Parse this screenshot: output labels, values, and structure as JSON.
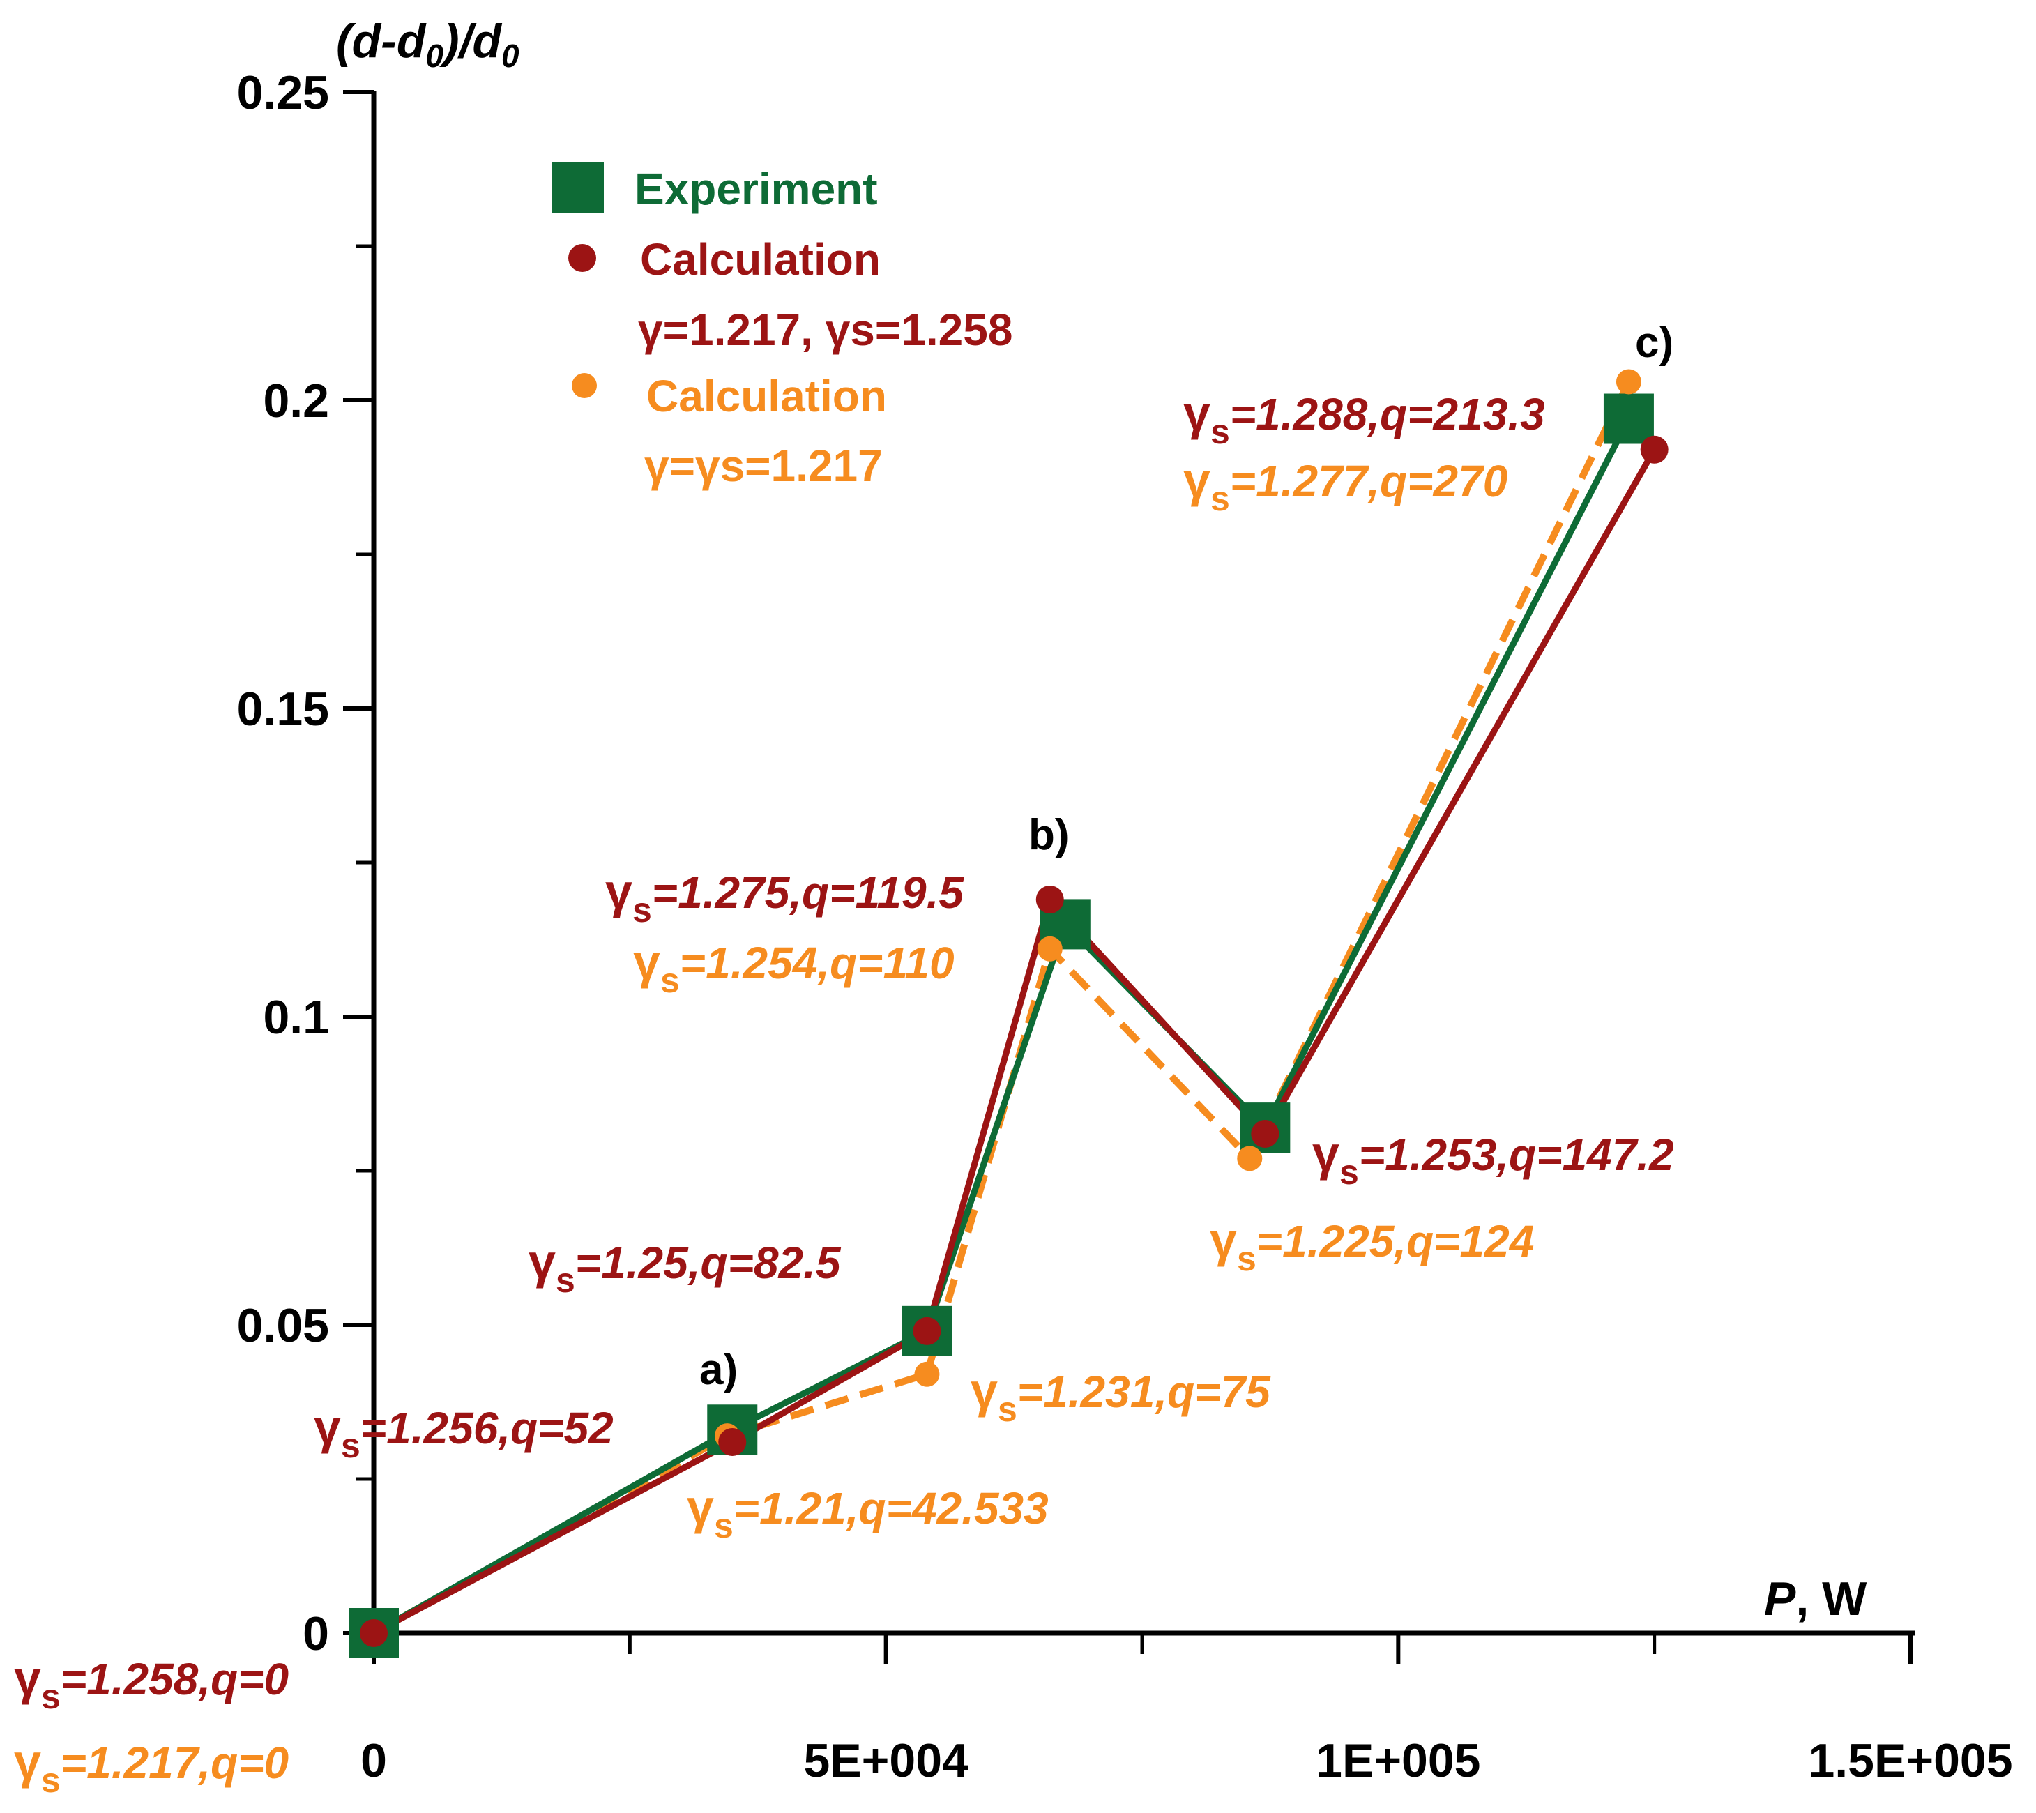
{
  "chart_data": {
    "type": "line",
    "title": "",
    "ylabel_parts": [
      "(d-d",
      "0",
      ")/d",
      "0"
    ],
    "xlabel_parts": [
      "P",
      ", W"
    ],
    "xlim": [
      0,
      150000
    ],
    "ylim": [
      0,
      0.25
    ],
    "x_ticks": [
      {
        "value": 0,
        "label": "0"
      },
      {
        "value": 50000,
        "label": "5E+004"
      },
      {
        "value": 100000,
        "label": "1E+005"
      },
      {
        "value": 150000,
        "label": "1.5E+005"
      }
    ],
    "x_minor_ticks": [
      25000,
      75000,
      125000
    ],
    "y_ticks": [
      {
        "value": 0,
        "label": "0"
      },
      {
        "value": 0.05,
        "label": "0.05"
      },
      {
        "value": 0.1,
        "label": "0.1"
      },
      {
        "value": 0.15,
        "label": "0.15"
      },
      {
        "value": 0.2,
        "label": "0.2"
      },
      {
        "value": 0.25,
        "label": "0.25"
      }
    ],
    "y_minor_ticks": [
      0.025,
      0.075,
      0.125,
      0.175,
      0.225
    ],
    "series": [
      {
        "name": "Experiment",
        "color": "#0e6b36",
        "marker": "square",
        "line": "solid",
        "x": [
          0,
          35000,
          54000,
          67500,
          87000,
          122500
        ],
        "y": [
          0,
          0.033,
          0.049,
          0.115,
          0.082,
          0.197
        ]
      },
      {
        "name": "Calculation γ=1.217, γs=1.258",
        "color": "#9c1414",
        "marker": "circle",
        "line": "solid",
        "x": [
          0,
          35000,
          54000,
          66000,
          87000,
          125000
        ],
        "y": [
          0,
          0.031,
          0.049,
          0.119,
          0.081,
          0.192
        ]
      },
      {
        "name": "Calculation γ=γs=1.217",
        "color": "#f68c1f",
        "marker": "circle",
        "line": "dashed",
        "x": [
          0,
          34500,
          54000,
          66000,
          85500,
          122500
        ],
        "y": [
          0,
          0.032,
          0.042,
          0.111,
          0.077,
          0.203
        ]
      }
    ],
    "legend": {
      "position": "top-left",
      "entries": [
        {
          "text": "Experiment",
          "sub": ""
        },
        {
          "text": "Calculation",
          "sub": "γ=1.217, γs=1.258"
        },
        {
          "text": "Calculation",
          "sub": "γ=γs=1.217"
        }
      ]
    },
    "point_labels": [
      "a)",
      "b)",
      "c)"
    ],
    "annotations_dark": [
      "=1.258,q=0",
      "=1.256,q=52",
      "=1.25,q=82.5",
      "=1.275,q=119.5",
      "=1.253,q=147.2",
      "=1.288,q=213.3"
    ],
    "annotations_orange": [
      "=1.217,q=0",
      "=1.21,q=42.533",
      "=1.231,q=75",
      "=1.254,q=110",
      "=1.225,q=124",
      "=1.277,q=270"
    ]
  }
}
